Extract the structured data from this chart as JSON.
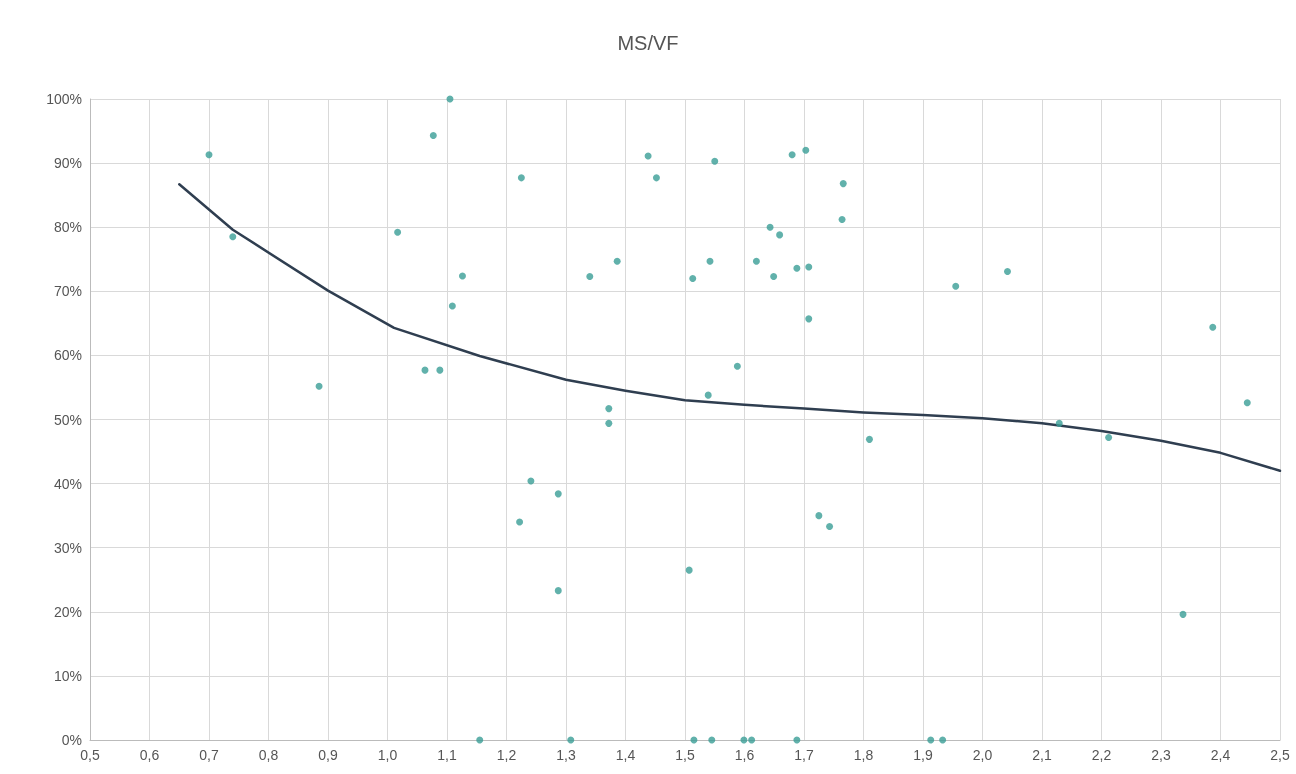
{
  "chart_data": {
    "type": "scatter",
    "title": "MS/VF",
    "xlim": [
      0.5,
      2.5
    ],
    "xticks": [
      {
        "value": 0.5,
        "label": "0,5"
      },
      {
        "value": 0.6,
        "label": "0,6"
      },
      {
        "value": 0.7,
        "label": "0,7"
      },
      {
        "value": 0.8,
        "label": "0,8"
      },
      {
        "value": 0.9,
        "label": "0,9"
      },
      {
        "value": 1.0,
        "label": "1,0"
      },
      {
        "value": 1.1,
        "label": "1,1"
      },
      {
        "value": 1.2,
        "label": "1,2"
      },
      {
        "value": 1.3,
        "label": "1,3"
      },
      {
        "value": 1.4,
        "label": "1,4"
      },
      {
        "value": 1.5,
        "label": "1,5"
      },
      {
        "value": 1.6,
        "label": "1,6"
      },
      {
        "value": 1.7,
        "label": "1,7"
      },
      {
        "value": 1.8,
        "label": "1,8"
      },
      {
        "value": 1.9,
        "label": "1,9"
      },
      {
        "value": 2.0,
        "label": "2,0"
      },
      {
        "value": 2.1,
        "label": "2,1"
      },
      {
        "value": 2.2,
        "label": "2,2"
      },
      {
        "value": 2.3,
        "label": "2,3"
      },
      {
        "value": 2.4,
        "label": "2,4"
      },
      {
        "value": 2.5,
        "label": "2,5"
      }
    ],
    "ylim": [
      0,
      100
    ],
    "yticks": [
      {
        "value": 0,
        "label": "0%"
      },
      {
        "value": 10,
        "label": "10%"
      },
      {
        "value": 20,
        "label": "20%"
      },
      {
        "value": 30,
        "label": "30%"
      },
      {
        "value": 40,
        "label": "40%"
      },
      {
        "value": 50,
        "label": "50%"
      },
      {
        "value": 60,
        "label": "60%"
      },
      {
        "value": 70,
        "label": "70%"
      },
      {
        "value": 80,
        "label": "80%"
      },
      {
        "value": 90,
        "label": "90%"
      },
      {
        "value": 100,
        "label": "100%"
      }
    ],
    "grid": true,
    "series": [
      {
        "color": "#3a9e96",
        "marker": "circle",
        "x": [
          0.7,
          0.74,
          0.885,
          1.017,
          1.063,
          1.088,
          1.077,
          1.105,
          1.126,
          1.109,
          1.155,
          1.225,
          1.222,
          1.241,
          1.287,
          1.287,
          1.308,
          1.34,
          1.386,
          1.372,
          1.372,
          1.438,
          1.452,
          1.513,
          1.507,
          1.515,
          1.542,
          1.539,
          1.545,
          1.55,
          1.588,
          1.599,
          1.612,
          1.62,
          1.643,
          1.649,
          1.659,
          1.68,
          1.688,
          1.688,
          1.703,
          1.708,
          1.708,
          1.725,
          1.743,
          1.766,
          1.764,
          1.81,
          1.913,
          1.933,
          1.955,
          2.042,
          2.129,
          2.212,
          2.337,
          2.387,
          2.445
        ],
        "values": [
          91.3,
          78.5,
          55.2,
          79.2,
          57.7,
          57.7,
          94.3,
          100,
          72.4,
          67.7,
          0,
          87.7,
          34.0,
          40.4,
          38.4,
          23.3,
          0,
          72.3,
          74.7,
          51.7,
          49.4,
          91.1,
          87.7,
          72.0,
          26.5,
          0,
          74.7,
          53.8,
          0,
          90.3,
          58.3,
          0,
          0,
          74.7,
          80.0,
          72.3,
          78.8,
          91.3,
          73.6,
          0,
          92.0,
          73.8,
          65.7,
          35.0,
          33.3,
          86.8,
          81.2,
          46.9,
          0,
          0,
          70.8,
          73.1,
          49.4,
          47.2,
          19.6,
          64.4,
          52.6
        ]
      },
      {
        "type": "line",
        "color": "#2f3e50",
        "marker": "none",
        "line_style": "solid",
        "x": [
          0.65,
          0.74,
          0.9,
          1.011,
          1.155,
          1.3,
          1.4,
          1.5,
          1.6,
          1.7,
          1.8,
          1.9,
          2.0,
          2.1,
          2.2,
          2.3,
          2.4,
          2.5
        ],
        "values": [
          86.7,
          79.6,
          70.1,
          64.3,
          59.9,
          56.2,
          54.5,
          53.0,
          52.3,
          51.7,
          51.1,
          50.7,
          50.2,
          49.4,
          48.2,
          46.7,
          44.8,
          42.0
        ]
      }
    ]
  }
}
